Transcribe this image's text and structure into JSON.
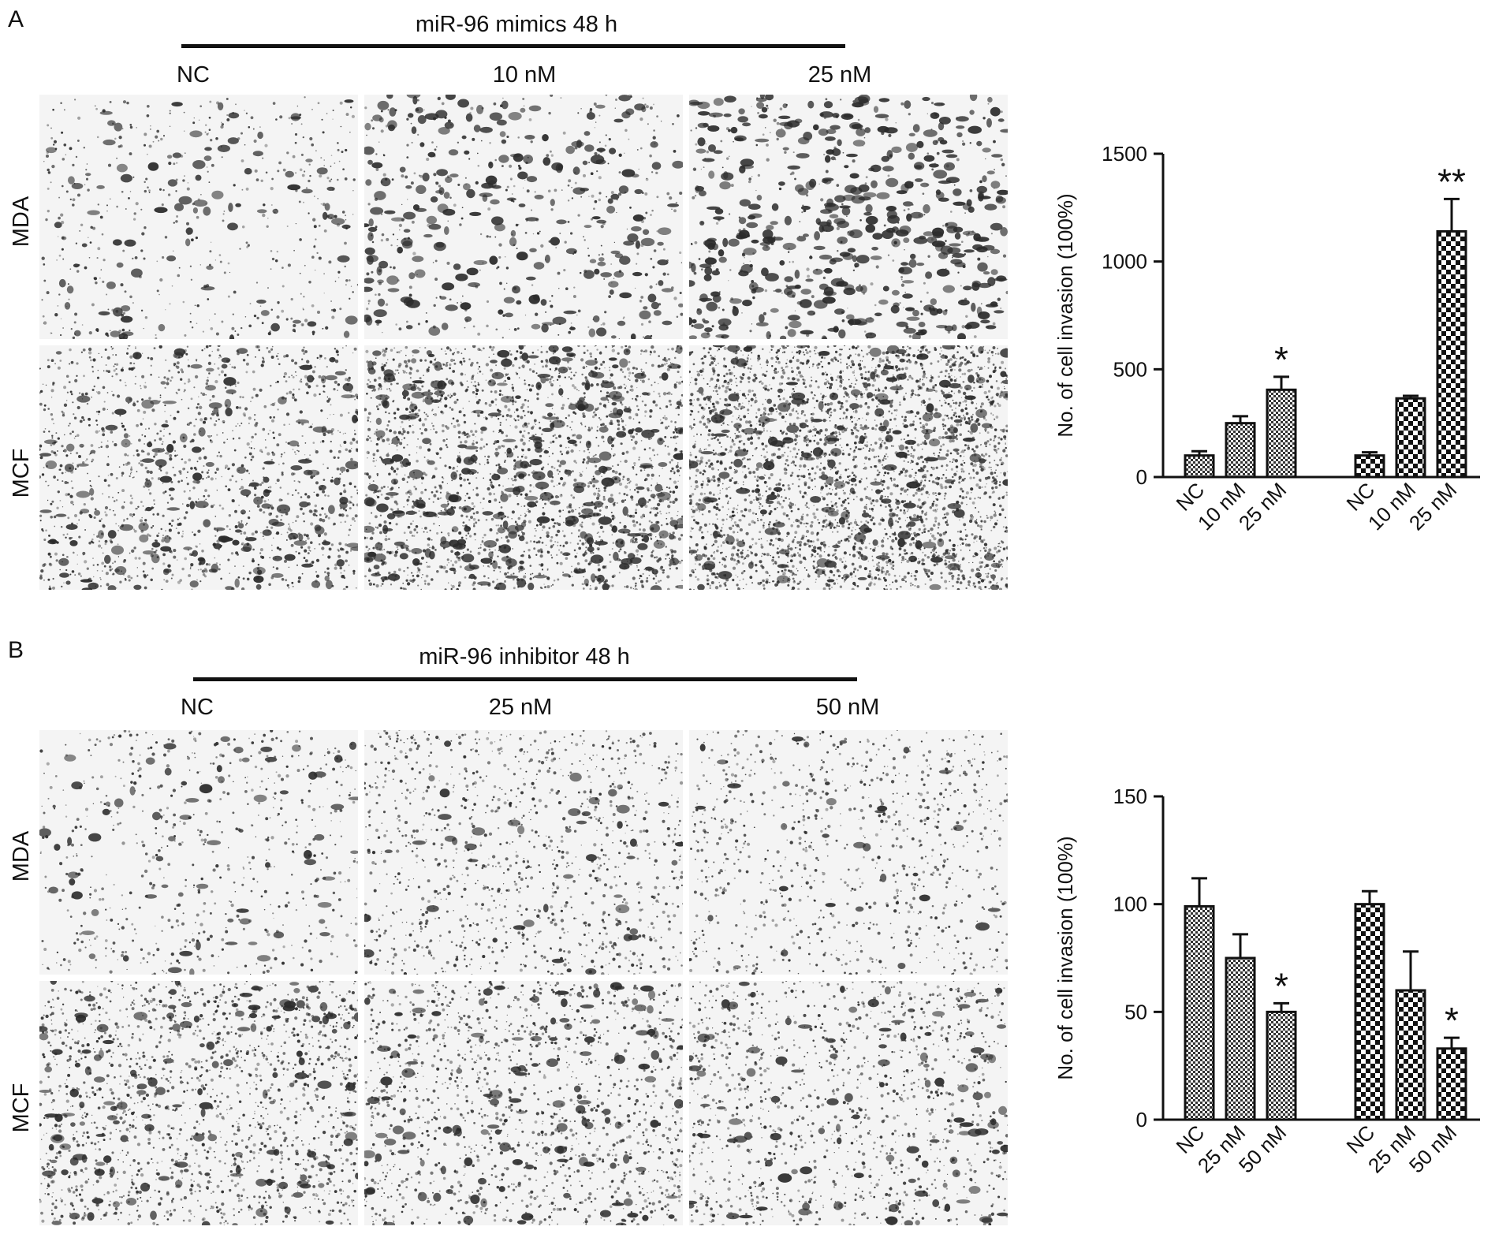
{
  "colors": {
    "ink": "#111111",
    "micro_bg": "#f4f4f4",
    "cell": "#2b2b2b"
  },
  "panels": [
    {
      "letter": "A",
      "title": "miR-96 mimics 48 h",
      "columns": [
        "NC",
        "10 nM",
        "25 nM"
      ],
      "rows": [
        "MDA",
        "MCF"
      ],
      "micrographs": [
        {
          "name": "micrograph-a-mda-nc",
          "cells": 90,
          "speckle": 500
        },
        {
          "name": "micrograph-a-mda-10nm",
          "cells": 240,
          "speckle": 400
        },
        {
          "name": "micrograph-a-mda-25nm",
          "cells": 430,
          "speckle": 300
        },
        {
          "name": "micrograph-a-mcf-nc",
          "cells": 170,
          "speckle": 1400
        },
        {
          "name": "micrograph-a-mcf-10nm",
          "cells": 300,
          "speckle": 2200
        },
        {
          "name": "micrograph-a-mcf-25nm",
          "cells": 200,
          "speckle": 3200
        }
      ]
    },
    {
      "letter": "B",
      "title": "miR-96 inhibitor 48 h",
      "columns": [
        "NC",
        "25 nM",
        "50 nM"
      ],
      "rows": [
        "MDA",
        "MCF"
      ],
      "micrographs": [
        {
          "name": "micrograph-b-mda-nc",
          "cells": 70,
          "speckle": 600
        },
        {
          "name": "micrograph-b-mda-25nm",
          "cells": 45,
          "speckle": 1100
        },
        {
          "name": "micrograph-b-mda-50nm",
          "cells": 32,
          "speckle": 900
        },
        {
          "name": "micrograph-b-mcf-nc",
          "cells": 150,
          "speckle": 1600
        },
        {
          "name": "micrograph-b-mcf-25nm",
          "cells": 130,
          "speckle": 1400
        },
        {
          "name": "micrograph-b-mcf-50nm",
          "cells": 110,
          "speckle": 1200
        }
      ]
    }
  ],
  "chart_data": [
    {
      "type": "bar",
      "ylabel": "No. of cell invasion (100%)",
      "ylim": [
        0,
        1500
      ],
      "yticks": [
        0,
        500,
        1000,
        1500
      ],
      "categories": [
        "NC",
        "10 nM",
        "25 nM",
        "NC",
        "10 nM",
        "25 nM"
      ],
      "values": [
        100,
        250,
        405,
        100,
        365,
        1140
      ],
      "errors": [
        20,
        32,
        60,
        15,
        12,
        150
      ],
      "significance": [
        "",
        "",
        "*",
        "",
        "",
        "**"
      ],
      "patterns": [
        "fine",
        "fine",
        "fine",
        "coarse",
        "coarse",
        "coarse"
      ]
    },
    {
      "type": "bar",
      "ylabel": "No. of cell invasion (100%)",
      "ylim": [
        0,
        150
      ],
      "yticks": [
        0,
        50,
        100,
        150
      ],
      "categories": [
        "NC",
        "25 nM",
        "50 nM",
        "NC",
        "25 nM",
        "50 nM"
      ],
      "values": [
        99,
        75,
        50,
        100,
        60,
        33
      ],
      "errors": [
        13,
        11,
        4,
        6,
        18,
        5
      ],
      "significance": [
        "",
        "",
        "*",
        "",
        "",
        "*"
      ],
      "patterns": [
        "fine",
        "fine",
        "fine",
        "coarse",
        "coarse",
        "coarse"
      ]
    }
  ]
}
